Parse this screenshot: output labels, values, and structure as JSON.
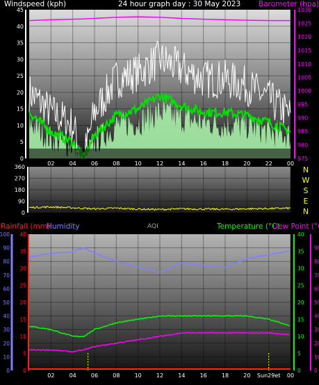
{
  "header": {
    "wind_label": "Windspeed (kph)",
    "title": "24 hour graph day : 30 May 2023",
    "baro_label": "Barometer (hpa)"
  },
  "footer": {
    "rain_label": "Rainfall (mm)",
    "humidity_label": "Humidity",
    "aqi_label": "AQI",
    "temp_label": "Temperature (°C)",
    "dew_label": "Dew Point (°C)"
  },
  "colors": {
    "wind_label": "#ffffff",
    "baro": "#ff00ff",
    "gust": "#ffffff",
    "avg_wind": "#00e000",
    "wind_fill": "#a8f0a8",
    "direction": "#ffff00",
    "rain": "#ff2020",
    "humidity": "#8080ff",
    "temperature": "#00ff00",
    "dew_point": "#ff00ff",
    "aqi": "#a0a0a0",
    "sun_marker": "#ffff00"
  },
  "chart_data": [
    {
      "type": "line",
      "title": "24 hour graph day : 30 May 2023",
      "x_ticks": [
        "02",
        "04",
        "06",
        "08",
        "10",
        "12",
        "14",
        "16",
        "18",
        "20",
        "22",
        "00"
      ],
      "left_axis": {
        "label": "Windspeed (kph)",
        "range": [
          0,
          45
        ],
        "ticks": [
          "0",
          "5",
          "10",
          "15",
          "20",
          "25",
          "30",
          "35",
          "40",
          "45"
        ]
      },
      "right_axis": {
        "label": "Barometer (hpa)",
        "range": [
          975,
          1030
        ],
        "ticks": [
          "975",
          "980",
          "985",
          "990",
          "995",
          "1000",
          "1005",
          "1010",
          "1015",
          "1020",
          "1025",
          "1030"
        ]
      },
      "x": [
        0,
        2,
        4,
        5,
        6,
        8,
        10,
        12,
        14,
        16,
        18,
        20,
        22,
        24
      ],
      "series": [
        {
          "name": "Barometer (hpa)",
          "values": [
            1026,
            1026.3,
            1026.5,
            1026.6,
            1026.8,
            1027.2,
            1027.4,
            1027.2,
            1026.8,
            1026.5,
            1026.3,
            1026.1,
            1026.0,
            1026.0
          ]
        },
        {
          "name": "Gust",
          "values": [
            20,
            14,
            10,
            0,
            14,
            24,
            26,
            30,
            27,
            24,
            24,
            22,
            18,
            13
          ]
        },
        {
          "name": "Average wind",
          "values": [
            14,
            8,
            5,
            0,
            7,
            13,
            15,
            19,
            16,
            14,
            14,
            13,
            11,
            8
          ]
        },
        {
          "name": "Wind speed",
          "values": [
            11,
            6,
            4,
            0,
            5,
            10,
            11,
            14,
            12,
            11,
            10,
            10,
            8,
            7
          ]
        }
      ],
      "grid": true
    },
    {
      "type": "line",
      "y_ticks": [
        "0",
        "90",
        "180",
        "270",
        "360"
      ],
      "range": [
        0,
        360
      ],
      "compass": [
        "N",
        "W",
        "S",
        "E",
        "N"
      ],
      "x": [
        0,
        2,
        4,
        6,
        8,
        10,
        12,
        14,
        16,
        18,
        20,
        22,
        24
      ],
      "series": [
        {
          "name": "Wind direction",
          "values": [
            40,
            45,
            38,
            30,
            35,
            28,
            25,
            30,
            28,
            27,
            30,
            32,
            35
          ]
        }
      ],
      "grid": true
    },
    {
      "type": "line",
      "x_ticks": [
        "02",
        "04",
        "06",
        "08",
        "10",
        "12",
        "14",
        "16",
        "18",
        "20",
        "Sun29et",
        "00"
      ],
      "left_axis_humidity": {
        "label": "Humidity",
        "range": [
          0,
          100
        ],
        "ticks": [
          "0",
          "10",
          "20",
          "30",
          "40",
          "50",
          "60",
          "70",
          "80",
          "90",
          "100"
        ]
      },
      "left_axis_rain": {
        "label": "Rainfall (mm)",
        "range": [
          0,
          40
        ],
        "ticks": [
          "0",
          "5",
          "10",
          "15",
          "20",
          "25",
          "30",
          "35",
          "40"
        ]
      },
      "right_axis_temp": {
        "label": "Temperature (°C)",
        "range": [
          0,
          40
        ],
        "ticks": [
          "0",
          "5",
          "10",
          "15",
          "20",
          "25",
          "30",
          "35",
          "40"
        ]
      },
      "right_axis_dew": {
        "label": "Dew Point (°C)",
        "range": [
          0,
          100
        ],
        "ticks": [
          "0",
          "10",
          "20",
          "30",
          "40",
          "50",
          "60",
          "70",
          "80",
          "90"
        ]
      },
      "x": [
        0,
        2,
        4,
        5,
        6,
        8,
        10,
        12,
        14,
        16,
        18,
        20,
        22,
        24
      ],
      "series": [
        {
          "name": "Humidity",
          "values": [
            83,
            86,
            87,
            90,
            86,
            80,
            76,
            72,
            79,
            77,
            76,
            82,
            85,
            88
          ]
        },
        {
          "name": "Temperature (°C)",
          "values": [
            13,
            12,
            10,
            10,
            12,
            14,
            15,
            16,
            16,
            16,
            16,
            16,
            15,
            13
          ]
        },
        {
          "name": "Dew Point (°C)",
          "values": [
            6,
            6,
            5.5,
            6,
            7,
            8,
            9,
            10,
            11,
            11,
            11,
            11,
            11,
            10.5
          ]
        },
        {
          "name": "Rainfall (mm)",
          "values": [
            0,
            0,
            0,
            0,
            0,
            0,
            0,
            0,
            0,
            0,
            0,
            0,
            0,
            0
          ]
        }
      ],
      "markers": [
        {
          "name": "Sunrise",
          "x": 5.4
        },
        {
          "name": "Sunset",
          "x": 22.0
        }
      ],
      "grid": true
    }
  ]
}
